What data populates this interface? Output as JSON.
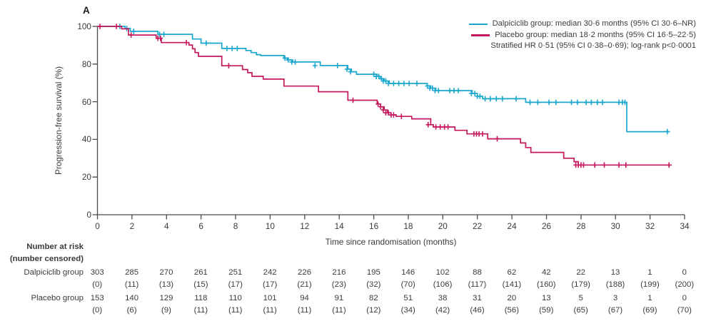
{
  "figure": {
    "panel_label": "A"
  },
  "colors": {
    "dalpiciclib": "#1AA7CE",
    "placebo": "#C4175C",
    "axis": "#4a4a4a",
    "text": "#3b3b3b"
  },
  "legend": {
    "items": [
      {
        "name": "dalpiciclib",
        "label": "Dalpiciclib group: median 30·6 months (95% CI 30·6–NR)"
      },
      {
        "name": "placebo",
        "label": "Placebo group: median 18·2 months (95% CI 16·5–22·5)"
      }
    ],
    "note": "Stratified HR 0·51 (95% CI 0·38–0·69); log-rank p<0·0001"
  },
  "chart_data": {
    "type": "line",
    "subtype": "kaplan_meier_step",
    "title": "",
    "xlabel": "Time since randomisation (months)",
    "ylabel": "Progression-free survival (%)",
    "xlim": [
      0,
      34
    ],
    "ylim": [
      0,
      100
    ],
    "x_ticks": [
      0,
      2,
      4,
      6,
      8,
      10,
      12,
      14,
      16,
      18,
      20,
      22,
      24,
      26,
      28,
      30,
      32,
      34
    ],
    "y_ticks": [
      0,
      20,
      40,
      60,
      80,
      100
    ],
    "grid": false,
    "legend_position": "top-right",
    "series": [
      {
        "name": "Dalpiciclib group",
        "color_key": "dalpiciclib",
        "median_months": "30·6",
        "end_time": 33.15,
        "steps": [
          [
            0,
            100
          ],
          [
            1.6,
            98.9
          ],
          [
            1.9,
            97.4
          ],
          [
            3.5,
            95.8
          ],
          [
            5.5,
            93.3
          ],
          [
            6.0,
            91.1
          ],
          [
            7.2,
            88.3
          ],
          [
            8.6,
            87.2
          ],
          [
            8.9,
            86.1
          ],
          [
            9.2,
            85.0
          ],
          [
            9.45,
            84.5
          ],
          [
            10.8,
            83.2
          ],
          [
            11.0,
            82.2
          ],
          [
            11.3,
            81.1
          ],
          [
            12.9,
            79.2
          ],
          [
            14.5,
            77.3
          ],
          [
            14.7,
            75.9
          ],
          [
            15.0,
            74.6
          ],
          [
            16.2,
            73.4
          ],
          [
            16.4,
            72.2
          ],
          [
            16.6,
            71.0
          ],
          [
            16.9,
            69.7
          ],
          [
            19.1,
            68.4
          ],
          [
            19.3,
            67.2
          ],
          [
            19.6,
            65.9
          ],
          [
            21.7,
            64.4
          ],
          [
            22.0,
            62.9
          ],
          [
            22.3,
            61.6
          ],
          [
            24.8,
            59.7
          ],
          [
            30.65,
            44.1
          ]
        ],
        "censor_marks": [
          [
            1.3,
            100
          ],
          [
            1.7,
            98.9
          ],
          [
            2.1,
            97.4
          ],
          [
            3.6,
            95.8
          ],
          [
            3.85,
            95.8
          ],
          [
            6.3,
            91.1
          ],
          [
            7.5,
            88.3
          ],
          [
            7.8,
            88.3
          ],
          [
            8.1,
            88.3
          ],
          [
            10.85,
            83.2
          ],
          [
            11.05,
            82.2
          ],
          [
            11.25,
            81.1
          ],
          [
            11.45,
            81.1
          ],
          [
            12.6,
            79.2
          ],
          [
            13.9,
            79.2
          ],
          [
            14.45,
            77.3
          ],
          [
            14.65,
            75.9
          ],
          [
            16.0,
            74.6
          ],
          [
            16.15,
            73.4
          ],
          [
            16.3,
            73.4
          ],
          [
            16.45,
            72.2
          ],
          [
            16.55,
            71.0
          ],
          [
            16.7,
            71.0
          ],
          [
            16.85,
            69.7
          ],
          [
            17.15,
            69.7
          ],
          [
            17.45,
            69.7
          ],
          [
            17.75,
            69.7
          ],
          [
            18.05,
            69.7
          ],
          [
            18.5,
            69.7
          ],
          [
            19.1,
            68.4
          ],
          [
            19.25,
            67.2
          ],
          [
            19.4,
            67.2
          ],
          [
            19.55,
            65.9
          ],
          [
            19.75,
            65.9
          ],
          [
            20.4,
            65.9
          ],
          [
            20.65,
            65.9
          ],
          [
            20.9,
            65.9
          ],
          [
            21.65,
            64.4
          ],
          [
            21.85,
            64.4
          ],
          [
            22.0,
            62.9
          ],
          [
            22.15,
            62.9
          ],
          [
            22.45,
            61.6
          ],
          [
            22.75,
            61.6
          ],
          [
            23.1,
            61.6
          ],
          [
            23.45,
            61.6
          ],
          [
            24.25,
            61.6
          ],
          [
            25.05,
            59.7
          ],
          [
            25.5,
            59.7
          ],
          [
            26.15,
            59.7
          ],
          [
            26.55,
            59.7
          ],
          [
            27.45,
            59.7
          ],
          [
            27.8,
            59.7
          ],
          [
            28.3,
            59.7
          ],
          [
            28.6,
            59.7
          ],
          [
            28.95,
            59.7
          ],
          [
            29.25,
            59.7
          ],
          [
            30.2,
            59.7
          ],
          [
            30.4,
            59.7
          ],
          [
            30.55,
            59.7
          ],
          [
            33.0,
            44.1
          ]
        ]
      },
      {
        "name": "Placebo group",
        "color_key": "placebo",
        "median_months": "18·2",
        "end_time": 33.25,
        "steps": [
          [
            0,
            100
          ],
          [
            1.4,
            98.7
          ],
          [
            1.8,
            95.4
          ],
          [
            3.4,
            93.7
          ],
          [
            3.7,
            91.4
          ],
          [
            5.3,
            90.1
          ],
          [
            5.5,
            88.1
          ],
          [
            5.65,
            86.1
          ],
          [
            5.85,
            84.1
          ],
          [
            7.2,
            79.1
          ],
          [
            8.4,
            77.1
          ],
          [
            8.7,
            75.4
          ],
          [
            8.95,
            73.5
          ],
          [
            9.6,
            72.0
          ],
          [
            10.8,
            68.3
          ],
          [
            12.8,
            65.3
          ],
          [
            14.5,
            60.8
          ],
          [
            16.2,
            58.8
          ],
          [
            16.4,
            57.3
          ],
          [
            16.6,
            55.6
          ],
          [
            16.8,
            54.1
          ],
          [
            17.0,
            53.0
          ],
          [
            17.3,
            52.2
          ],
          [
            18.2,
            50.9
          ],
          [
            19.3,
            47.8
          ],
          [
            19.45,
            46.6
          ],
          [
            20.7,
            44.8
          ],
          [
            21.4,
            42.9
          ],
          [
            22.6,
            40.3
          ],
          [
            24.5,
            38.1
          ],
          [
            24.8,
            35.7
          ],
          [
            25.1,
            33.1
          ],
          [
            27.0,
            30.0
          ],
          [
            27.6,
            28.2
          ],
          [
            27.85,
            26.4
          ]
        ],
        "censor_marks": [
          [
            0.15,
            100
          ],
          [
            1.1,
            100
          ],
          [
            1.95,
            95.4
          ],
          [
            3.5,
            93.7
          ],
          [
            3.65,
            93.7
          ],
          [
            5.15,
            91.4
          ],
          [
            7.6,
            79.1
          ],
          [
            14.8,
            60.8
          ],
          [
            16.25,
            58.8
          ],
          [
            16.4,
            57.3
          ],
          [
            16.55,
            55.6
          ],
          [
            16.7,
            54.1
          ],
          [
            16.85,
            54.1
          ],
          [
            17.0,
            53.0
          ],
          [
            17.15,
            53.0
          ],
          [
            17.6,
            52.2
          ],
          [
            19.15,
            47.8
          ],
          [
            19.6,
            46.6
          ],
          [
            19.85,
            46.6
          ],
          [
            20.1,
            46.6
          ],
          [
            20.3,
            46.6
          ],
          [
            21.8,
            42.9
          ],
          [
            21.95,
            42.9
          ],
          [
            22.1,
            42.9
          ],
          [
            22.3,
            42.9
          ],
          [
            23.15,
            40.3
          ],
          [
            27.7,
            26.4
          ],
          [
            27.85,
            26.4
          ],
          [
            28.0,
            26.4
          ],
          [
            28.15,
            26.4
          ],
          [
            28.8,
            26.4
          ],
          [
            29.35,
            26.4
          ],
          [
            30.2,
            26.4
          ],
          [
            30.6,
            26.4
          ],
          [
            33.1,
            26.4
          ]
        ]
      }
    ]
  },
  "at_risk": {
    "header": "Number at risk",
    "subheader": "(number censored)",
    "time_points": [
      0,
      2,
      4,
      6,
      8,
      10,
      12,
      14,
      16,
      18,
      20,
      22,
      24,
      26,
      28,
      30,
      32,
      34
    ],
    "rows": [
      {
        "label": "Dalpiciclib group",
        "at_risk": [
          "303",
          "285",
          "270",
          "261",
          "251",
          "242",
          "226",
          "216",
          "195",
          "146",
          "102",
          "88",
          "62",
          "42",
          "22",
          "13",
          "1",
          "0"
        ],
        "censored": [
          "(0)",
          "(11)",
          "(13)",
          "(15)",
          "(17)",
          "(17)",
          "(21)",
          "(23)",
          "(32)",
          "(70)",
          "(106)",
          "(117)",
          "(141)",
          "(160)",
          "(179)",
          "(188)",
          "(199)",
          "(200)"
        ]
      },
      {
        "label": "Placebo group",
        "at_risk": [
          "153",
          "140",
          "129",
          "118",
          "110",
          "101",
          "94",
          "91",
          "82",
          "51",
          "38",
          "31",
          "20",
          "13",
          "5",
          "3",
          "1",
          "0"
        ],
        "censored": [
          "(0)",
          "(6)",
          "(9)",
          "(11)",
          "(11)",
          "(11)",
          "(11)",
          "(11)",
          "(12)",
          "(34)",
          "(42)",
          "(46)",
          "(56)",
          "(59)",
          "(65)",
          "(67)",
          "(69)",
          "(70)"
        ]
      }
    ]
  }
}
